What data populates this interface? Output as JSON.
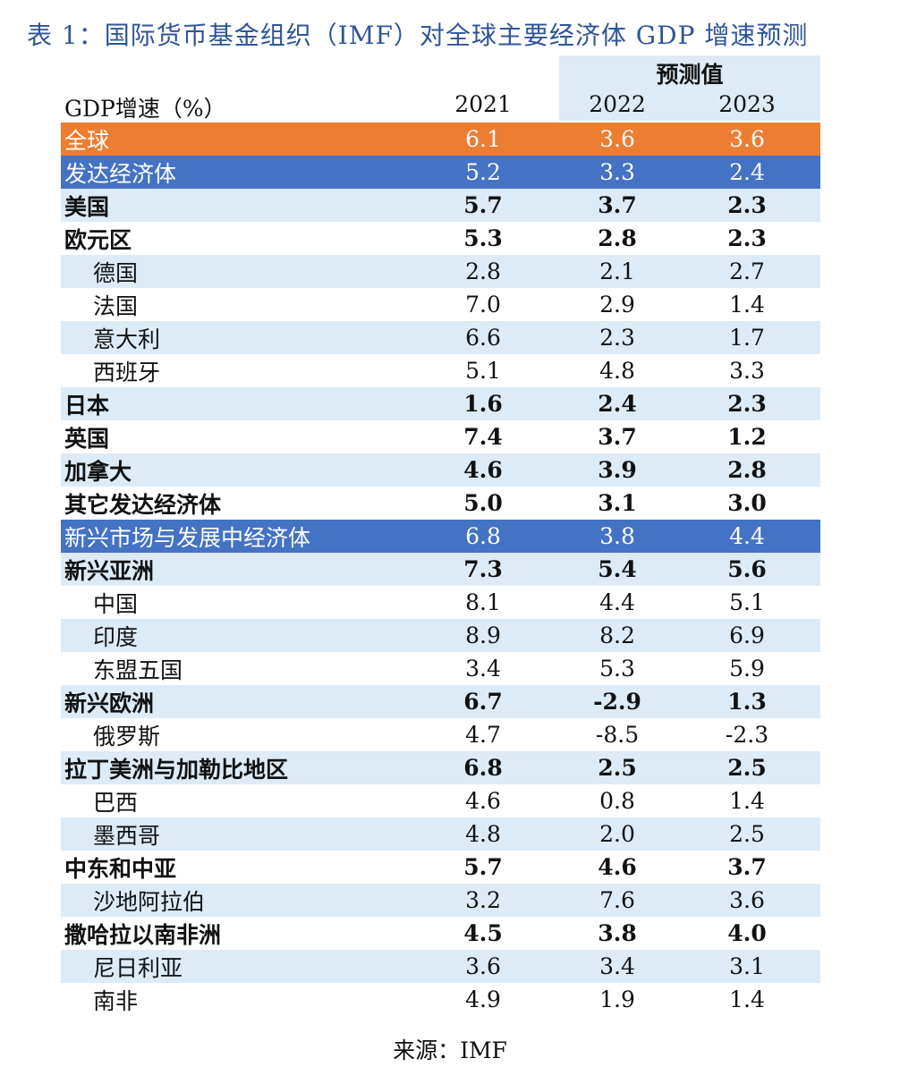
{
  "title": "表 1：国际货币基金组织（IMF）对全球主要经济体 GDP 增速预测",
  "header": {
    "label": "GDP增速（%）",
    "forecast_label": "预测值",
    "years": [
      "2021",
      "2022",
      "2023"
    ]
  },
  "colors": {
    "orange": "#ED7D31",
    "blue": "#4472C4",
    "light": "#DDEBF7",
    "title": "#2F5597"
  },
  "rows": [
    {
      "label": "全球",
      "values": [
        "6.1",
        "3.6",
        "3.6"
      ],
      "style": "orange",
      "bold": false,
      "sub": false
    },
    {
      "label": "发达经济体",
      "values": [
        "5.2",
        "3.3",
        "2.4"
      ],
      "style": "blue",
      "bold": false,
      "sub": false
    },
    {
      "label": "美国",
      "values": [
        "5.7",
        "3.7",
        "2.3"
      ],
      "style": "light",
      "bold": true,
      "sub": false
    },
    {
      "label": "欧元区",
      "values": [
        "5.3",
        "2.8",
        "2.3"
      ],
      "style": "white",
      "bold": true,
      "sub": false
    },
    {
      "label": "德国",
      "values": [
        "2.8",
        "2.1",
        "2.7"
      ],
      "style": "light",
      "bold": false,
      "sub": true
    },
    {
      "label": "法国",
      "values": [
        "7.0",
        "2.9",
        "1.4"
      ],
      "style": "white",
      "bold": false,
      "sub": true
    },
    {
      "label": "意大利",
      "values": [
        "6.6",
        "2.3",
        "1.7"
      ],
      "style": "light",
      "bold": false,
      "sub": true
    },
    {
      "label": "西班牙",
      "values": [
        "5.1",
        "4.8",
        "3.3"
      ],
      "style": "white",
      "bold": false,
      "sub": true
    },
    {
      "label": "日本",
      "values": [
        "1.6",
        "2.4",
        "2.3"
      ],
      "style": "light",
      "bold": true,
      "sub": false
    },
    {
      "label": "英国",
      "values": [
        "7.4",
        "3.7",
        "1.2"
      ],
      "style": "white",
      "bold": true,
      "sub": false
    },
    {
      "label": "加拿大",
      "values": [
        "4.6",
        "3.9",
        "2.8"
      ],
      "style": "light",
      "bold": true,
      "sub": false
    },
    {
      "label": "其它发达经济体",
      "values": [
        "5.0",
        "3.1",
        "3.0"
      ],
      "style": "white",
      "bold": true,
      "sub": false
    },
    {
      "label": "新兴市场与发展中经济体",
      "values": [
        "6.8",
        "3.8",
        "4.4"
      ],
      "style": "blue",
      "bold": false,
      "sub": false
    },
    {
      "label": "新兴亚洲",
      "values": [
        "7.3",
        "5.4",
        "5.6"
      ],
      "style": "light",
      "bold": true,
      "sub": false
    },
    {
      "label": "中国",
      "values": [
        "8.1",
        "4.4",
        "5.1"
      ],
      "style": "white",
      "bold": false,
      "sub": true
    },
    {
      "label": "印度",
      "values": [
        "8.9",
        "8.2",
        "6.9"
      ],
      "style": "light",
      "bold": false,
      "sub": true
    },
    {
      "label": "东盟五国",
      "values": [
        "3.4",
        "5.3",
        "5.9"
      ],
      "style": "white",
      "bold": false,
      "sub": true
    },
    {
      "label": "新兴欧洲",
      "values": [
        "6.7",
        "-2.9",
        "1.3"
      ],
      "style": "light",
      "bold": true,
      "sub": false
    },
    {
      "label": "俄罗斯",
      "values": [
        "4.7",
        "-8.5",
        "-2.3"
      ],
      "style": "white",
      "bold": false,
      "sub": true
    },
    {
      "label": "拉丁美洲与加勒比地区",
      "values": [
        "6.8",
        "2.5",
        "2.5"
      ],
      "style": "light",
      "bold": true,
      "sub": false
    },
    {
      "label": "巴西",
      "values": [
        "4.6",
        "0.8",
        "1.4"
      ],
      "style": "white",
      "bold": false,
      "sub": true
    },
    {
      "label": "墨西哥",
      "values": [
        "4.8",
        "2.0",
        "2.5"
      ],
      "style": "light",
      "bold": false,
      "sub": true
    },
    {
      "label": "中东和中亚",
      "values": [
        "5.7",
        "4.6",
        "3.7"
      ],
      "style": "white",
      "bold": true,
      "sub": false
    },
    {
      "label": "沙地阿拉伯",
      "values": [
        "3.2",
        "7.6",
        "3.6"
      ],
      "style": "light",
      "bold": false,
      "sub": true
    },
    {
      "label": "撒哈拉以南非洲",
      "values": [
        "4.5",
        "3.8",
        "4.0"
      ],
      "style": "white",
      "bold": true,
      "sub": false
    },
    {
      "label": "尼日利亚",
      "values": [
        "3.6",
        "3.4",
        "3.1"
      ],
      "style": "light",
      "bold": false,
      "sub": true
    },
    {
      "label": "南非",
      "values": [
        "4.9",
        "1.9",
        "1.4"
      ],
      "style": "white",
      "bold": false,
      "sub": true
    }
  ],
  "source": "来源：IMF"
}
